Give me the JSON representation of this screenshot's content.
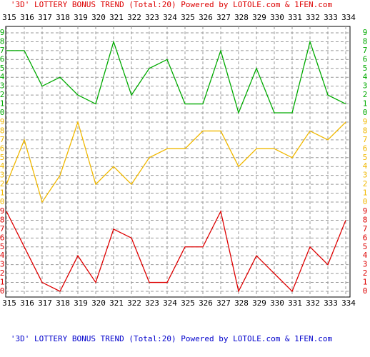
{
  "chart_data": {
    "type": "line",
    "title": "'3D' LOTTERY BONUS TREND (Total:20)  Powered by LOTOLE.com & 1FEN.com",
    "title_color": "#dd0000",
    "footer_color": "#0000cc",
    "categories": [
      "315",
      "316",
      "317",
      "318",
      "319",
      "320",
      "321",
      "322",
      "323",
      "324",
      "325",
      "326",
      "327",
      "328",
      "329",
      "330",
      "331",
      "332",
      "333",
      "334"
    ],
    "ylim": [
      0,
      9
    ],
    "yticks": [
      0,
      1,
      2,
      3,
      4,
      5,
      6,
      7,
      8,
      9
    ],
    "grid": true,
    "series": [
      {
        "color": "#00aa00",
        "values": [
          7,
          7,
          3,
          4,
          2,
          1,
          8,
          2,
          5,
          6,
          1,
          1,
          7,
          0,
          5,
          0,
          0,
          8,
          2,
          1
        ]
      },
      {
        "color": "#f0b800",
        "values": [
          2,
          7,
          0,
          3,
          9,
          2,
          4,
          2,
          5,
          6,
          6,
          8,
          8,
          4,
          6,
          6,
          5,
          8,
          7,
          9
        ]
      },
      {
        "color": "#dd0000",
        "values": [
          9,
          5,
          1,
          0,
          4,
          1,
          7,
          6,
          1,
          1,
          5,
          5,
          9,
          0,
          4,
          2,
          0,
          5,
          3,
          8
        ]
      }
    ]
  }
}
